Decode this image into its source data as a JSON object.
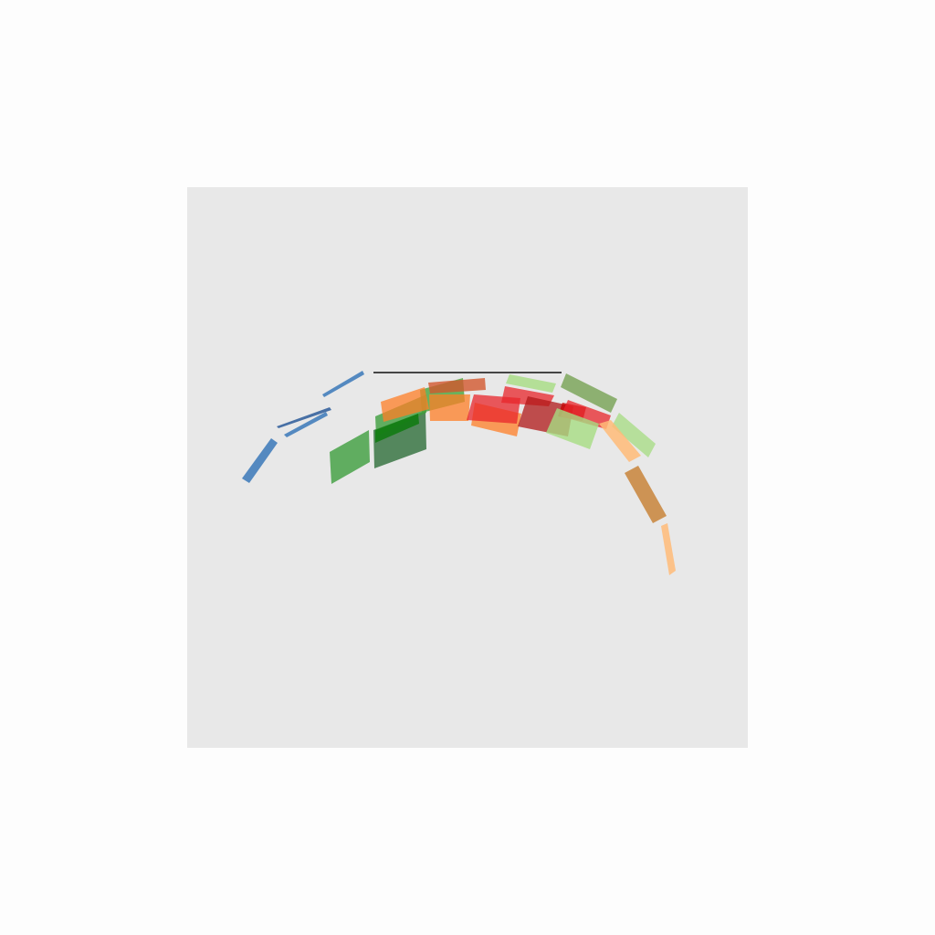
{
  "chart_data": {
    "type": "arc",
    "title": "",
    "xlabel": "",
    "ylabel": "",
    "grid": false,
    "legend": "none",
    "panel_color": "#e8e8e8",
    "page_color": "#fdfdfd",
    "reference_line": {
      "color": "#111111"
    },
    "series": [
      {
        "segments": [
          {
            "color": "#3a78b8",
            "opacity": 0.85
          },
          {
            "color": "#2b5a99",
            "opacity": 0.85
          },
          {
            "color": "#3a78b8",
            "opacity": 0.85
          },
          {
            "color": "#3a78b8",
            "opacity": 0.85
          }
        ]
      },
      {
        "segments": [
          {
            "color": "#3d9e3d",
            "opacity": 0.8
          },
          {
            "color": "#2e6e3a",
            "opacity": 0.8
          },
          {
            "color": "#3d9e3d",
            "opacity": 0.8
          },
          {
            "color": "#0e7a0e",
            "opacity": 0.85
          },
          {
            "color": "#4aa33a",
            "opacity": 0.8
          }
        ]
      },
      {
        "segments": [
          {
            "color": "#ff7f27",
            "opacity": 0.75
          },
          {
            "color": "#ff7f27",
            "opacity": 0.75
          },
          {
            "color": "#ff7f27",
            "opacity": 0.75
          },
          {
            "color": "#d2582e",
            "opacity": 0.8
          }
        ]
      },
      {
        "segments": [
          {
            "color": "#e8262b",
            "opacity": 0.75
          },
          {
            "color": "#e8262b",
            "opacity": 0.75
          },
          {
            "color": "#b01818",
            "opacity": 0.75
          },
          {
            "color": "#c40000",
            "opacity": 0.75
          },
          {
            "color": "#e8262b",
            "opacity": 0.75
          }
        ]
      },
      {
        "segments": [
          {
            "color": "#a6dc82",
            "opacity": 0.8
          },
          {
            "color": "#a6dc82",
            "opacity": 0.8
          },
          {
            "color": "#6f9e4a",
            "opacity": 0.75
          },
          {
            "color": "#a6dc82",
            "opacity": 0.75
          }
        ]
      },
      {
        "segments": [
          {
            "color": "#ffbb78",
            "opacity": 0.85
          },
          {
            "color": "#c8843a",
            "opacity": 0.85
          },
          {
            "color": "#ffbb78",
            "opacity": 0.85
          }
        ]
      }
    ]
  }
}
